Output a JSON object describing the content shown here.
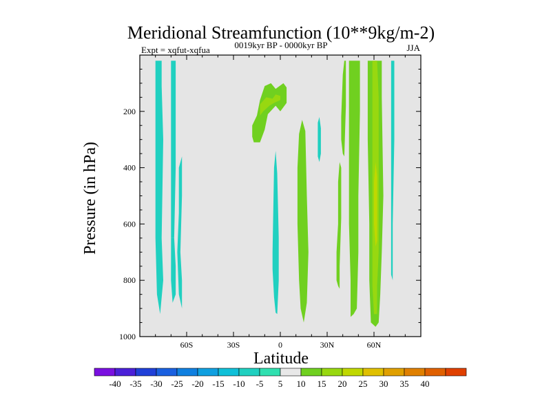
{
  "chart_data": {
    "type": "contour",
    "title": "Meridional Streamfunction (10**9kg/m-2)",
    "left_string": "Expt = xqfut-xqfua",
    "center_string": "0019kyr BP - 0000kyr BP",
    "right_string": "JJA",
    "xlabel": "Latitude",
    "ylabel": "Pressure (in hPa)",
    "xlim": [
      -90,
      90
    ],
    "ylim": [
      1000,
      0
    ],
    "x_ticks": [
      {
        "value": -60,
        "label": "60S"
      },
      {
        "value": -30,
        "label": "30S"
      },
      {
        "value": 0,
        "label": "0"
      },
      {
        "value": 30,
        "label": "30N"
      },
      {
        "value": 60,
        "label": "60N"
      }
    ],
    "y_ticks": [
      {
        "value": 200,
        "label": "200"
      },
      {
        "value": 400,
        "label": "400"
      },
      {
        "value": 600,
        "label": "600"
      },
      {
        "value": 800,
        "label": "800"
      },
      {
        "value": 1000,
        "label": "1000"
      }
    ],
    "background_color": "#e5e5e5",
    "colorbar": {
      "labels": [
        "-40",
        "-35",
        "-30",
        "-25",
        "-20",
        "-15",
        "-10",
        "-5",
        "5",
        "10",
        "15",
        "20",
        "25",
        "30",
        "35",
        "40"
      ],
      "colors": [
        "#7a10e0",
        "#4b20d8",
        "#2040d8",
        "#1a60e0",
        "#1080e0",
        "#10a0e0",
        "#10c0d8",
        "#20d0c0",
        "#30e0b0",
        "#e8e8e8",
        "#70d020",
        "#98d810",
        "#c0d800",
        "#e0c000",
        "#e0a000",
        "#e08000",
        "#e06000",
        "#e04000"
      ]
    },
    "regions": [
      {
        "name": "neg-band-74S",
        "level": "-10",
        "color": "#20d0c0",
        "points": [
          [
            -80,
            20
          ],
          [
            -76,
            20
          ],
          [
            -76,
            110
          ],
          [
            -75,
            300
          ],
          [
            -76,
            650
          ],
          [
            -75,
            800
          ],
          [
            -77,
            920
          ],
          [
            -79,
            850
          ],
          [
            -80,
            650
          ],
          [
            -80,
            300
          ]
        ]
      },
      {
        "name": "neg-band-68S-upper",
        "level": "-10",
        "color": "#20d0c0",
        "points": [
          [
            -70,
            20
          ],
          [
            -67,
            20
          ],
          [
            -67,
            400
          ],
          [
            -68,
            650
          ],
          [
            -70,
            650
          ],
          [
            -70,
            400
          ]
        ]
      },
      {
        "name": "neg-band-68S-lower",
        "level": "-10",
        "color": "#20d0c0",
        "points": [
          [
            -70,
            650
          ],
          [
            -68,
            650
          ],
          [
            -67,
            750
          ],
          [
            -67,
            850
          ],
          [
            -69,
            880
          ],
          [
            -70,
            800
          ]
        ]
      },
      {
        "name": "neg-band-64S",
        "level": "-10",
        "color": "#20d0c0",
        "points": [
          [
            -65,
            400
          ],
          [
            -63,
            360
          ],
          [
            -63,
            500
          ],
          [
            -64,
            700
          ],
          [
            -63,
            800
          ],
          [
            -63,
            900
          ],
          [
            -65,
            850
          ],
          [
            -66,
            700
          ],
          [
            -65,
            560
          ]
        ]
      },
      {
        "name": "pos-blob-upper-tropics",
        "level": "5",
        "color": "#70d020",
        "points": [
          [
            -18,
            250
          ],
          [
            -15,
            215
          ],
          [
            -13,
            160
          ],
          [
            -10,
            110
          ],
          [
            -6,
            100
          ],
          [
            -3,
            120
          ],
          [
            2,
            100
          ],
          [
            4,
            115
          ],
          [
            4,
            170
          ],
          [
            0,
            200
          ],
          [
            -3,
            180
          ],
          [
            -8,
            210
          ],
          [
            -10,
            265
          ],
          [
            -13,
            310
          ],
          [
            -17,
            310
          ],
          [
            -18,
            290
          ]
        ]
      },
      {
        "name": "pos-core-upper-tropics",
        "level": "10",
        "color": "#98d810",
        "points": [
          [
            -13,
            175
          ],
          [
            -9,
            150
          ],
          [
            -5,
            155
          ],
          [
            -3,
            140
          ],
          [
            0,
            145
          ],
          [
            0,
            160
          ],
          [
            -4,
            170
          ],
          [
            -7,
            180
          ],
          [
            -11,
            200
          ],
          [
            -13,
            215
          ]
        ]
      },
      {
        "name": "neg-band-3S",
        "level": "-10",
        "color": "#20d0c0",
        "points": [
          [
            -5,
            700
          ],
          [
            -4,
            400
          ],
          [
            -3,
            340
          ],
          [
            -2,
            420
          ],
          [
            -1,
            650
          ],
          [
            -1,
            800
          ],
          [
            -2,
            920
          ],
          [
            -3,
            915
          ],
          [
            -4,
            860
          ],
          [
            -5,
            760
          ]
        ]
      },
      {
        "name": "pos-band-15N",
        "level": "5",
        "color": "#70d020",
        "points": [
          [
            12,
            800
          ],
          [
            11,
            600
          ],
          [
            11,
            400
          ],
          [
            12,
            280
          ],
          [
            14,
            230
          ],
          [
            16,
            270
          ],
          [
            17,
            500
          ],
          [
            18,
            700
          ],
          [
            17,
            880
          ],
          [
            15,
            950
          ],
          [
            13,
            900
          ]
        ]
      },
      {
        "name": "neg-blob-25N",
        "level": "-10",
        "color": "#20d0c0",
        "points": [
          [
            24,
            300
          ],
          [
            24,
            240
          ],
          [
            25,
            220
          ],
          [
            26,
            260
          ],
          [
            26,
            350
          ],
          [
            25,
            380
          ],
          [
            24,
            360
          ]
        ]
      },
      {
        "name": "pos-band-38N",
        "level": "5",
        "color": "#70d020",
        "points": [
          [
            36,
            800
          ],
          [
            36,
            700
          ],
          [
            37,
            600
          ],
          [
            37,
            450
          ],
          [
            38,
            380
          ],
          [
            39,
            400
          ],
          [
            39,
            580
          ],
          [
            38,
            750
          ],
          [
            38,
            830
          ],
          [
            37,
            820
          ]
        ]
      },
      {
        "name": "pos-band-40N-upper",
        "level": "5",
        "color": "#70d020",
        "points": [
          [
            39,
            220
          ],
          [
            40,
            70
          ],
          [
            41,
            20
          ],
          [
            42,
            20
          ],
          [
            42,
            180
          ],
          [
            41,
            360
          ],
          [
            40,
            350
          ],
          [
            39,
            300
          ]
        ]
      },
      {
        "name": "pos-band-45N",
        "level": "5",
        "color": "#70d020",
        "points": [
          [
            44,
            20
          ],
          [
            51,
            20
          ],
          [
            51,
            200
          ],
          [
            50,
            500
          ],
          [
            50,
            700
          ],
          [
            49,
            900
          ],
          [
            47,
            920
          ],
          [
            45,
            930
          ],
          [
            45,
            800
          ],
          [
            44,
            600
          ]
        ]
      },
      {
        "name": "pos-band-61N",
        "level": "5",
        "color": "#70d020",
        "points": [
          [
            56,
            20
          ],
          [
            65,
            20
          ],
          [
            65,
            150
          ],
          [
            66,
            500
          ],
          [
            65,
            700
          ],
          [
            64,
            850
          ],
          [
            63,
            950
          ],
          [
            61,
            965
          ],
          [
            58,
            950
          ],
          [
            57,
            800
          ],
          [
            57,
            600
          ],
          [
            56,
            300
          ]
        ]
      },
      {
        "name": "pos-core-61N",
        "level": "10",
        "color": "#98d810",
        "points": [
          [
            59,
            20
          ],
          [
            62,
            20
          ],
          [
            63,
            150
          ],
          [
            63,
            400
          ],
          [
            63,
            700
          ],
          [
            62,
            820
          ],
          [
            62,
            920
          ],
          [
            60,
            920
          ],
          [
            59,
            820
          ],
          [
            59,
            600
          ],
          [
            59,
            300
          ]
        ]
      },
      {
        "name": "pos-inner-61N",
        "level": "15",
        "color": "#c0d800",
        "points": [
          [
            61,
            380
          ],
          [
            62,
            430
          ],
          [
            62,
            660
          ],
          [
            61,
            680
          ],
          [
            60,
            600
          ],
          [
            60,
            450
          ]
        ]
      },
      {
        "name": "neg-band-73N",
        "level": "-10",
        "color": "#20d0c0",
        "points": [
          [
            71,
            20
          ],
          [
            73,
            20
          ],
          [
            73,
            300
          ],
          [
            72,
            600
          ],
          [
            72,
            800
          ],
          [
            71,
            780
          ],
          [
            71,
            500
          ]
        ]
      }
    ]
  }
}
